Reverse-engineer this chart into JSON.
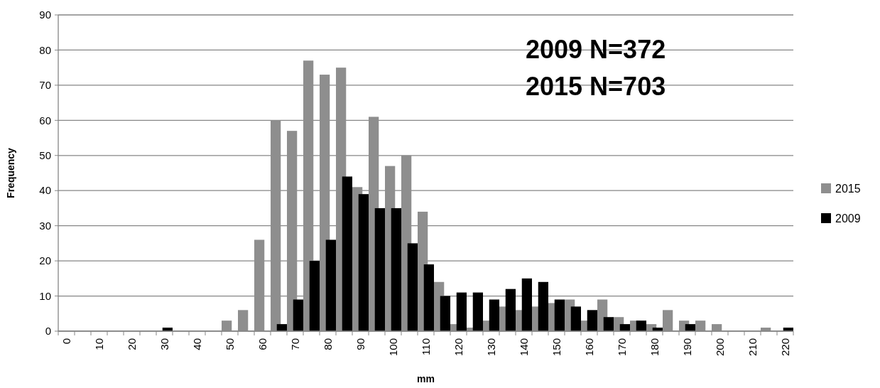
{
  "chart_data": {
    "type": "bar",
    "xlabel": "mm",
    "ylabel": "Frequency",
    "categories": [
      "0",
      null,
      "10",
      null,
      "20",
      null,
      "30",
      null,
      "40",
      null,
      "50",
      null,
      "60",
      null,
      "70",
      null,
      "80",
      null,
      "90",
      null,
      "100",
      null,
      "110",
      null,
      "120",
      null,
      "130",
      null,
      "140",
      null,
      "150",
      null,
      "160",
      null,
      "170",
      null,
      "180",
      null,
      "190",
      null,
      "200",
      null,
      "210",
      null,
      "220"
    ],
    "series": [
      {
        "name": "2015",
        "color": "#8e8e8e",
        "values": [
          0,
          0,
          0,
          0,
          0,
          0,
          0,
          0,
          0,
          0,
          3,
          6,
          26,
          60,
          57,
          77,
          73,
          75,
          41,
          61,
          47,
          50,
          34,
          14,
          2,
          1,
          3,
          7,
          6,
          7,
          8,
          9,
          3,
          9,
          4,
          3,
          2,
          6,
          3,
          3,
          2,
          0,
          0,
          1,
          0
        ]
      },
      {
        "name": "2009",
        "color": "#000000",
        "values": [
          0,
          0,
          0,
          0,
          0,
          0,
          1,
          0,
          0,
          0,
          0,
          0,
          0,
          2,
          9,
          20,
          26,
          44,
          39,
          35,
          35,
          25,
          19,
          10,
          11,
          11,
          9,
          12,
          15,
          14,
          9,
          7,
          6,
          4,
          2,
          3,
          1,
          0,
          2,
          0,
          0,
          0,
          0,
          0,
          1
        ]
      }
    ],
    "ylim": [
      0,
      90
    ],
    "yticks": [
      0,
      10,
      20,
      30,
      40,
      50,
      60,
      70,
      80,
      90
    ],
    "grid": "y",
    "legend": "right",
    "annotations": [
      "2009 N=372",
      "2015 N=703"
    ]
  }
}
